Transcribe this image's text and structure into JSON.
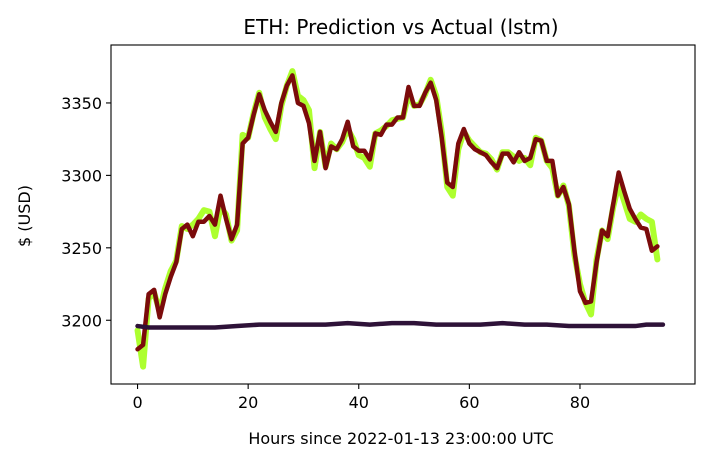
{
  "chart_data": {
    "type": "line",
    "title": "ETH: Prediction vs Actual (lstm)",
    "xlabel": "Hours since 2022-01-13 23:00:00 UTC",
    "ylabel": "$ (USD)",
    "xlim": [
      -4.8,
      100.8
    ],
    "ylim": [
      3156,
      3390
    ],
    "xticks": [
      0,
      20,
      40,
      60,
      80
    ],
    "yticks": [
      3200,
      3250,
      3300,
      3350
    ],
    "grid": false,
    "legend": "none",
    "colors": {
      "actual": "#adff2f",
      "prediction": "#7b0b0b",
      "baseline": "#2e1238"
    },
    "series": [
      {
        "key": "actual",
        "values": [
          3193,
          3168,
          3215,
          3219,
          3206,
          3222,
          3234,
          3241,
          3265,
          3263,
          3266,
          3270,
          3276,
          3275,
          3258,
          3278,
          3273,
          3255,
          3262,
          3328,
          3326,
          3343,
          3357,
          3340,
          3332,
          3325,
          3348,
          3362,
          3372,
          3355,
          3352,
          3345,
          3305,
          3330,
          3306,
          3322,
          3318,
          3323,
          3332,
          3325,
          3314,
          3312,
          3306,
          3329,
          3331,
          3334,
          3338,
          3339,
          3340,
          3356,
          3348,
          3349,
          3356,
          3366,
          3355,
          3330,
          3292,
          3286,
          3318,
          3330,
          3324,
          3320,
          3316,
          3315,
          3311,
          3304,
          3316,
          3316,
          3313,
          3310,
          3312,
          3307,
          3326,
          3324,
          3310,
          3305,
          3286,
          3293,
          3279,
          3245,
          3225,
          3212,
          3204,
          3242,
          3262,
          3256,
          3278,
          3294,
          3282,
          3270,
          3268,
          3273,
          3270,
          3268,
          3242
        ]
      },
      {
        "key": "prediction",
        "values": [
          3180,
          3183,
          3218,
          3221,
          3202,
          3218,
          3230,
          3240,
          3263,
          3266,
          3258,
          3268,
          3268,
          3272,
          3266,
          3286,
          3270,
          3256,
          3266,
          3322,
          3326,
          3342,
          3356,
          3345,
          3337,
          3330,
          3350,
          3362,
          3369,
          3350,
          3348,
          3336,
          3310,
          3330,
          3305,
          3320,
          3318,
          3325,
          3337,
          3320,
          3317,
          3317,
          3311,
          3329,
          3328,
          3335,
          3335,
          3340,
          3340,
          3361,
          3348,
          3348,
          3357,
          3364,
          3352,
          3326,
          3295,
          3292,
          3322,
          3332,
          3322,
          3318,
          3316,
          3314,
          3309,
          3305,
          3315,
          3315,
          3309,
          3316,
          3310,
          3312,
          3325,
          3324,
          3310,
          3310,
          3286,
          3292,
          3280,
          3248,
          3220,
          3212,
          3213,
          3240,
          3262,
          3258,
          3280,
          3302,
          3289,
          3277,
          3270,
          3264,
          3263,
          3248,
          3251
        ]
      },
      {
        "key": "baseline",
        "x": [
          0,
          2,
          4,
          6,
          10,
          14,
          18,
          22,
          26,
          30,
          34,
          38,
          42,
          46,
          50,
          54,
          58,
          62,
          66,
          70,
          74,
          78,
          82,
          86,
          90,
          92,
          95
        ],
        "values": [
          3196,
          3195,
          3195,
          3195,
          3195,
          3195,
          3196,
          3197,
          3197,
          3197,
          3197,
          3198,
          3197,
          3198,
          3198,
          3197,
          3197,
          3197,
          3198,
          3197,
          3197,
          3196,
          3196,
          3196,
          3196,
          3197,
          3197
        ]
      }
    ]
  }
}
